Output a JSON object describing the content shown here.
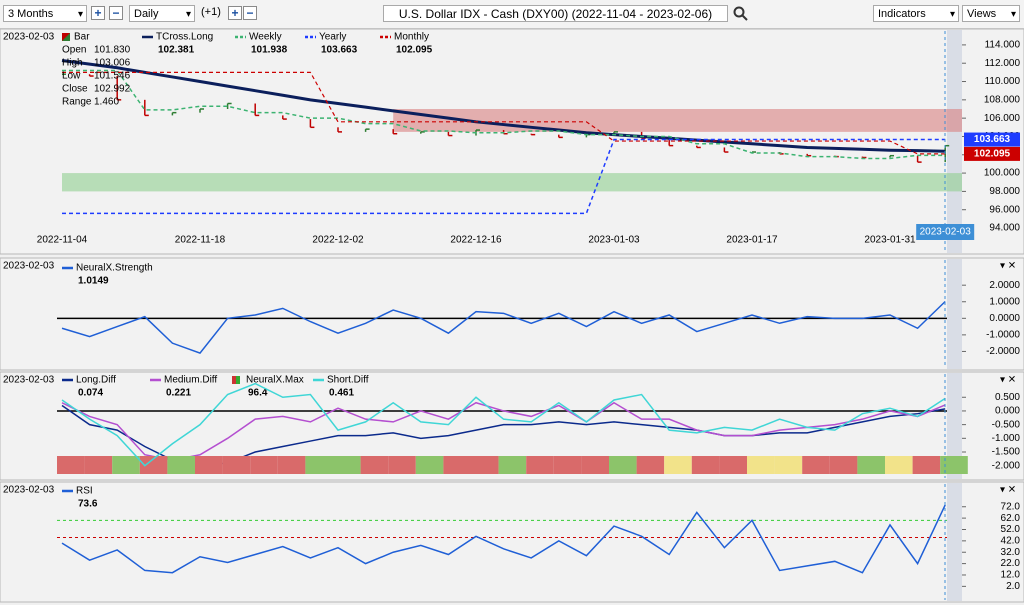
{
  "toolbar": {
    "range": "3 Months",
    "interval": "Daily",
    "offset": "(+1)",
    "symbol": "U.S. Dollar IDX - Cash (DXY00) (2022-11-04 - 2023-02-06)",
    "indicators": "Indicators",
    "views": "Views"
  },
  "date": "2023-02-03",
  "chart_data": [
    {
      "type": "line",
      "categories": [
        "2022-11-04",
        null,
        null,
        null,
        null,
        "2022-11-18",
        null,
        null,
        null,
        null,
        "2022-12-02",
        null,
        null,
        null,
        null,
        "2022-12-16",
        null,
        null,
        null,
        null,
        "2023-01-03",
        null,
        null,
        null,
        null,
        "2023-01-17",
        null,
        null,
        null,
        null,
        "2023-01-31",
        null,
        "2023-02-03"
      ],
      "bar_legend": {
        "name": "Bar",
        "fields": [
          {
            "label": "Open",
            "value": 101.83,
            "value_label": "101.830"
          },
          {
            "label": "High",
            "value": 103.006
          },
          {
            "label": "Low",
            "value": 101.546
          },
          {
            "label": "Close",
            "value": 102.992
          },
          {
            "label": "Range",
            "value": 1.46,
            "value_label": "1.460"
          }
        ]
      },
      "bars": {
        "values": [
          110.8,
          110.6,
          108.0,
          106.3,
          106.6,
          107.0,
          107.6,
          106.3,
          105.9,
          105.0,
          104.5,
          104.8,
          104.3,
          104.5,
          104.1,
          104.7,
          104.3,
          104.2,
          103.9,
          104.2,
          104.5,
          103.8,
          103.0,
          102.8,
          102.3,
          102.3,
          102.1,
          101.9,
          101.8,
          101.7,
          101.9,
          101.2,
          102.992
        ]
      },
      "zones": [
        {
          "low": 104.5,
          "high": 107.0,
          "from": 12,
          "color": "#d98080"
        },
        {
          "low": 98.0,
          "high": 100.0,
          "from": 0,
          "color": "#8fcf8f"
        }
      ],
      "series": [
        {
          "name": "TCross.Long",
          "color": "#0b1f5c",
          "width": 3,
          "dashed": false,
          "last": 102.381,
          "values": [
            112.3,
            111.9,
            111.5,
            111.0,
            110.5,
            110.0,
            109.5,
            109.0,
            108.5,
            108.0,
            107.6,
            107.2,
            106.8,
            106.4,
            106.0,
            105.6,
            105.3,
            105.0,
            104.7,
            104.4,
            104.2,
            104.0,
            103.8,
            103.6,
            103.4,
            103.2,
            103.0,
            102.8,
            102.7,
            102.6,
            102.5,
            102.45,
            102.381
          ]
        },
        {
          "name": "Weekly",
          "color": "#3cb371",
          "width": 1.5,
          "dashed": true,
          "last": 101.938,
          "values": [
            111.2,
            111.2,
            111.2,
            106.9,
            106.9,
            107.3,
            107.3,
            106.6,
            106.6,
            106.0,
            106.0,
            105.4,
            105.4,
            104.6,
            104.6,
            104.4,
            104.4,
            104.6,
            104.6,
            104.2,
            104.2,
            104.0,
            104.0,
            103.2,
            103.2,
            102.2,
            102.2,
            101.8,
            101.8,
            101.6,
            101.6,
            101.938,
            101.938
          ]
        },
        {
          "name": "Yearly",
          "color": "#1e3cff",
          "width": 1.5,
          "dashed": true,
          "tag": true,
          "last": 103.663,
          "values": [
            95.6,
            95.6,
            95.6,
            95.6,
            95.6,
            95.6,
            95.6,
            95.6,
            95.6,
            95.6,
            95.6,
            95.6,
            95.6,
            95.6,
            95.6,
            95.6,
            95.6,
            95.6,
            95.6,
            95.6,
            103.663,
            103.663,
            103.663,
            103.663,
            103.663,
            103.663,
            103.663,
            103.663,
            103.663,
            103.663,
            103.663,
            103.663,
            103.663
          ]
        },
        {
          "name": "Monthly",
          "color": "#cc0000",
          "width": 1.2,
          "dashed": true,
          "tag": true,
          "last": 102.095,
          "values": [
            111.0,
            111.0,
            111.0,
            111.0,
            111.0,
            111.0,
            111.0,
            111.0,
            111.0,
            111.0,
            105.6,
            105.6,
            105.6,
            105.6,
            105.6,
            105.6,
            105.6,
            105.6,
            105.6,
            105.6,
            103.5,
            103.5,
            103.5,
            103.5,
            103.5,
            103.5,
            103.5,
            103.5,
            103.5,
            103.5,
            103.5,
            102.095,
            102.095
          ]
        }
      ],
      "ylim": [
        91.6,
        115.3
      ],
      "yticks": [
        {
          "value": 94,
          "label": "94.000"
        },
        {
          "value": 96,
          "label": "96.000"
        },
        {
          "value": 98,
          "label": "98.000"
        },
        {
          "value": 100,
          "label": "100.000"
        },
        {
          "value": 102,
          "label": "102.000"
        },
        {
          "value": 104,
          "label": "104.000"
        },
        {
          "value": 106,
          "label": "106.000"
        },
        {
          "value": 108,
          "label": "108.000"
        },
        {
          "value": 110,
          "label": "110.000"
        },
        {
          "value": 112,
          "label": "112.000"
        },
        {
          "value": 114,
          "label": "114.000"
        }
      ]
    },
    {
      "type": "line",
      "series": [
        {
          "name": "NeuralX.Strength",
          "color": "#1f5fd6",
          "width": 1.5,
          "dashed": false,
          "last": 1.0149,
          "values": [
            -0.6,
            -1.1,
            -0.5,
            0.1,
            -1.5,
            -2.1,
            0.0,
            0.2,
            0.6,
            -0.2,
            -0.9,
            -0.3,
            0.5,
            0.0,
            -0.9,
            0.4,
            0.3,
            -0.3,
            0.3,
            -0.5,
            0.4,
            -0.3,
            0.2,
            -0.8,
            -0.3,
            0.2,
            -0.3,
            0.1,
            0.0,
            0.0,
            0.2,
            -0.6,
            1.0149
          ]
        }
      ],
      "ref_lines": [
        {
          "value": 0,
          "color": "#000000"
        }
      ],
      "ylim": [
        -3.0,
        3.4
      ],
      "yticks": [
        {
          "value": 2,
          "label": "2.0000"
        },
        {
          "value": 1,
          "label": "1.0000"
        },
        {
          "value": 0,
          "label": "0.0000"
        },
        {
          "value": -1,
          "label": "-1.0000"
        },
        {
          "value": -2,
          "label": "-2.0000"
        }
      ]
    },
    {
      "type": "line",
      "series": [
        {
          "name": "Long.Diff",
          "color": "#0b2a8c",
          "width": 1.5,
          "dashed": false,
          "last": 0.074,
          "values": [
            0.2,
            -0.5,
            -0.7,
            -1.3,
            -1.8,
            -2.0,
            -1.9,
            -1.5,
            -1.3,
            -1.1,
            -0.9,
            -0.9,
            -0.8,
            -1.0,
            -0.9,
            -0.7,
            -0.5,
            -0.5,
            -0.4,
            -0.5,
            -0.4,
            -0.5,
            -0.6,
            -0.7,
            -0.9,
            -0.9,
            -0.8,
            -0.8,
            -0.6,
            -0.4,
            -0.2,
            -0.1,
            0.074
          ]
        },
        {
          "name": "Medium.Diff",
          "color": "#b44fd0",
          "width": 1.5,
          "dashed": false,
          "last": 0.221,
          "values": [
            0.3,
            -0.2,
            -0.5,
            -1.6,
            -1.8,
            -1.6,
            -1.0,
            -0.3,
            -0.2,
            -0.4,
            0.1,
            -0.3,
            -0.4,
            0.0,
            -0.3,
            0.3,
            0.0,
            -0.2,
            0.2,
            -0.4,
            0.3,
            -0.3,
            -0.3,
            -0.7,
            -0.9,
            -0.9,
            -0.7,
            -0.6,
            -0.5,
            -0.3,
            0.0,
            -0.2,
            0.221
          ]
        },
        {
          "name": "NeuralX.Max",
          "color": "#d9534f",
          "strip_only": true,
          "last": 96.4,
          "strip": [
            "#d96a6a",
            "#d96a6a",
            "#8cc46a",
            "#d96a6a",
            "#8cc46a",
            "#d96a6a",
            "#d96a6a",
            "#d96a6a",
            "#d96a6a",
            "#8cc46a",
            "#8cc46a",
            "#d96a6a",
            "#d96a6a",
            "#8cc46a",
            "#d96a6a",
            "#d96a6a",
            "#8cc46a",
            "#d96a6a",
            "#d96a6a",
            "#d96a6a",
            "#8cc46a",
            "#d96a6a",
            "#f2e38a",
            "#d96a6a",
            "#d96a6a",
            "#f2e38a",
            "#f2e38a",
            "#d96a6a",
            "#d96a6a",
            "#8cc46a",
            "#f2e38a",
            "#d96a6a",
            "#8cc46a"
          ]
        },
        {
          "name": "Short.Diff",
          "color": "#3fd6d6",
          "width": 1.5,
          "dashed": false,
          "last": 0.461,
          "values": [
            0.4,
            -0.3,
            -0.9,
            -2.0,
            -1.2,
            -0.5,
            0.6,
            1.0,
            0.5,
            0.6,
            -0.7,
            -0.4,
            0.3,
            -0.4,
            -0.5,
            0.5,
            -0.3,
            -0.4,
            0.3,
            -0.4,
            0.4,
            0.6,
            -0.7,
            -0.8,
            -0.6,
            -0.7,
            -0.3,
            -0.6,
            -0.7,
            -0.1,
            0.1,
            -0.2,
            0.461
          ]
        }
      ],
      "ref_lines": [
        {
          "value": 0,
          "color": "#000000"
        }
      ],
      "ylim": [
        -2.45,
        1.35
      ],
      "yticks": [
        {
          "value": 0.5,
          "label": "0.500"
        },
        {
          "value": 0,
          "label": "0.000"
        },
        {
          "value": -0.5,
          "label": "-0.500"
        },
        {
          "value": -1,
          "label": "-1.000"
        },
        {
          "value": -1.5,
          "label": "-1.500"
        },
        {
          "value": -2,
          "label": "-2.000"
        }
      ]
    },
    {
      "type": "line",
      "series": [
        {
          "name": "RSI",
          "color": "#1f5fd6",
          "width": 1.5,
          "dashed": false,
          "last": 73.6,
          "values": [
            40,
            25,
            34,
            16,
            14,
            28,
            23,
            30,
            37,
            27,
            36,
            22,
            32,
            38,
            30,
            46,
            35,
            27,
            42,
            29,
            55,
            46,
            30,
            67,
            36,
            60,
            16,
            20,
            24,
            14,
            56,
            22,
            73.6
          ]
        }
      ],
      "ref_lines": [
        {
          "value": 60,
          "color": "#33cc33"
        },
        {
          "value": 45,
          "color": "#cc0000"
        }
      ],
      "ylim": [
        -10,
        92
      ],
      "yticks": [
        {
          "value": 72,
          "label": "72.0"
        },
        {
          "value": 62,
          "label": "62.0"
        },
        {
          "value": 52,
          "label": "52.0"
        },
        {
          "value": 42,
          "label": "42.0"
        },
        {
          "value": 32,
          "label": "32.0"
        },
        {
          "value": 22,
          "label": "22.0"
        },
        {
          "value": 12,
          "label": "12.0"
        },
        {
          "value": 2,
          "label": "2.0"
        }
      ]
    }
  ]
}
